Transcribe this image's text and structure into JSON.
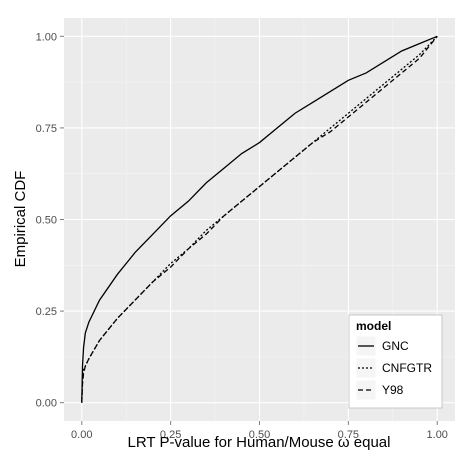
{
  "chart_data": {
    "type": "line",
    "title": "",
    "xlabel": "LRT P-value for Human/Mouse ω equal",
    "ylabel": "Empirical CDF",
    "xlim": [
      0,
      1
    ],
    "ylim": [
      0,
      1
    ],
    "x_ticks": [
      0,
      0.25,
      0.5,
      0.75,
      1
    ],
    "x_tick_labels": [
      "0.00",
      "0.25",
      "0.50",
      "0.75",
      "1.00"
    ],
    "y_ticks": [
      0,
      0.25,
      0.5,
      0.75,
      1
    ],
    "y_tick_labels": [
      "0.00",
      "0.25",
      "0.50",
      "0.75",
      "1.00"
    ],
    "grid": true,
    "legend": {
      "title": "model",
      "position": "bottom-right"
    },
    "series": [
      {
        "name": "GNC",
        "linetype": "solid",
        "points": [
          [
            0,
            0
          ],
          [
            0.002,
            0.1
          ],
          [
            0.005,
            0.15
          ],
          [
            0.01,
            0.19
          ],
          [
            0.02,
            0.22
          ],
          [
            0.05,
            0.28
          ],
          [
            0.1,
            0.35
          ],
          [
            0.15,
            0.41
          ],
          [
            0.2,
            0.46
          ],
          [
            0.25,
            0.51
          ],
          [
            0.3,
            0.55
          ],
          [
            0.35,
            0.6
          ],
          [
            0.4,
            0.64
          ],
          [
            0.45,
            0.68
          ],
          [
            0.5,
            0.71
          ],
          [
            0.55,
            0.75
          ],
          [
            0.6,
            0.79
          ],
          [
            0.65,
            0.82
          ],
          [
            0.7,
            0.85
          ],
          [
            0.75,
            0.88
          ],
          [
            0.8,
            0.9
          ],
          [
            0.85,
            0.93
          ],
          [
            0.9,
            0.96
          ],
          [
            0.95,
            0.98
          ],
          [
            1,
            1
          ]
        ]
      },
      {
        "name": "CNFGTR",
        "linetype": "dotted",
        "points": [
          [
            0,
            0
          ],
          [
            0.002,
            0.06
          ],
          [
            0.005,
            0.09
          ],
          [
            0.01,
            0.1
          ],
          [
            0.02,
            0.12
          ],
          [
            0.05,
            0.17
          ],
          [
            0.1,
            0.23
          ],
          [
            0.15,
            0.28
          ],
          [
            0.2,
            0.33
          ],
          [
            0.25,
            0.38
          ],
          [
            0.3,
            0.42
          ],
          [
            0.35,
            0.47
          ],
          [
            0.4,
            0.51
          ],
          [
            0.45,
            0.55
          ],
          [
            0.5,
            0.59
          ],
          [
            0.55,
            0.63
          ],
          [
            0.6,
            0.67
          ],
          [
            0.65,
            0.71
          ],
          [
            0.7,
            0.75
          ],
          [
            0.75,
            0.79
          ],
          [
            0.8,
            0.83
          ],
          [
            0.85,
            0.87
          ],
          [
            0.9,
            0.91
          ],
          [
            0.95,
            0.95
          ],
          [
            1,
            1
          ]
        ]
      },
      {
        "name": "Y98",
        "linetype": "dashed",
        "points": [
          [
            0,
            0
          ],
          [
            0.002,
            0.05
          ],
          [
            0.005,
            0.08
          ],
          [
            0.01,
            0.1
          ],
          [
            0.02,
            0.12
          ],
          [
            0.05,
            0.17
          ],
          [
            0.1,
            0.23
          ],
          [
            0.15,
            0.28
          ],
          [
            0.2,
            0.33
          ],
          [
            0.25,
            0.37
          ],
          [
            0.3,
            0.42
          ],
          [
            0.35,
            0.46
          ],
          [
            0.4,
            0.51
          ],
          [
            0.45,
            0.55
          ],
          [
            0.5,
            0.59
          ],
          [
            0.55,
            0.63
          ],
          [
            0.6,
            0.67
          ],
          [
            0.65,
            0.71
          ],
          [
            0.7,
            0.74
          ],
          [
            0.75,
            0.78
          ],
          [
            0.8,
            0.82
          ],
          [
            0.85,
            0.86
          ],
          [
            0.9,
            0.9
          ],
          [
            0.95,
            0.94
          ],
          [
            1,
            1
          ]
        ]
      }
    ]
  },
  "colors": {
    "panel_background": "#ebebeb",
    "grid_major": "#ffffff",
    "grid_minor": "#f5f5f5",
    "line": "#000000"
  }
}
